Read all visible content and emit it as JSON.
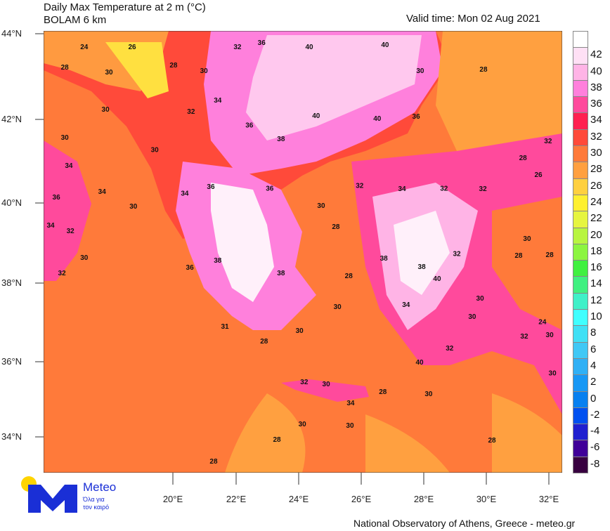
{
  "header": {
    "title": "Daily Max Temperature at 2 m (°C)",
    "model": "BOLAM 6 km",
    "valid_time": "Valid time: Mon 02 Aug 2021"
  },
  "axes": {
    "lat_ticks": [
      "44°N",
      "42°N",
      "40°N",
      "38°N",
      "36°N",
      "34°N"
    ],
    "lon_ticks": [
      "20°E",
      "22°E",
      "24°E",
      "26°E",
      "28°E",
      "30°E",
      "32°E"
    ]
  },
  "colorbar": {
    "labels": [
      "",
      "42",
      "40",
      "38",
      "36",
      "34",
      "32",
      "30",
      "28",
      "26",
      "24",
      "22",
      "20",
      "18",
      "16",
      "14",
      "12",
      "10",
      "8",
      "6",
      "4",
      "2",
      "0",
      "-2",
      "-4",
      "-6",
      "-8"
    ],
    "colors": [
      "#ffffff",
      "#ffe0f5",
      "#ffb4e6",
      "#ff80dc",
      "#ff4a9c",
      "#ff2050",
      "#ff4a3a",
      "#ff7a3a",
      "#ffa040",
      "#ffd040",
      "#fff030",
      "#e6f540",
      "#b8f540",
      "#8cf540",
      "#40f040",
      "#40f080",
      "#40f0c8",
      "#40ffff",
      "#40e0f5",
      "#40c8f5",
      "#30b0f5",
      "#1898f5",
      "#0880f0",
      "#0050f0",
      "#2020d0",
      "#400098",
      "#380040"
    ]
  },
  "temperature_labels": [
    {
      "t": "24",
      "lon": 17.17,
      "lat": 43.69
    },
    {
      "t": "26",
      "lon": 18.7,
      "lat": 43.69
    },
    {
      "t": "28",
      "lon": 16.55,
      "lat": 43.18
    },
    {
      "t": "30",
      "lon": 17.96,
      "lat": 43.06
    },
    {
      "t": "28",
      "lon": 20.02,
      "lat": 43.23
    },
    {
      "t": "30",
      "lon": 20.99,
      "lat": 43.09
    },
    {
      "t": "32",
      "lon": 22.06,
      "lat": 43.69
    },
    {
      "t": "36",
      "lon": 22.83,
      "lat": 43.79
    },
    {
      "t": "40",
      "lon": 24.35,
      "lat": 43.69
    },
    {
      "t": "40",
      "lon": 26.77,
      "lat": 43.74
    },
    {
      "t": "30",
      "lon": 27.89,
      "lat": 43.09
    },
    {
      "t": "28",
      "lon": 29.91,
      "lat": 43.13
    },
    {
      "t": "30",
      "lon": 17.85,
      "lat": 42.14
    },
    {
      "t": "30",
      "lon": 16.55,
      "lat": 41.44
    },
    {
      "t": "32",
      "lon": 20.58,
      "lat": 42.08
    },
    {
      "t": "34",
      "lon": 21.43,
      "lat": 42.36
    },
    {
      "t": "36",
      "lon": 22.44,
      "lat": 41.74
    },
    {
      "t": "40",
      "lon": 24.57,
      "lat": 41.98
    },
    {
      "t": "40",
      "lon": 26.52,
      "lat": 41.91
    },
    {
      "t": "36",
      "lon": 27.76,
      "lat": 41.96
    },
    {
      "t": "38",
      "lon": 23.45,
      "lat": 41.4
    },
    {
      "t": "30",
      "lon": 19.42,
      "lat": 41.13
    },
    {
      "t": "34",
      "lon": 16.68,
      "lat": 40.74
    },
    {
      "t": "36",
      "lon": 16.28,
      "lat": 39.96
    },
    {
      "t": "34",
      "lon": 17.74,
      "lat": 40.1
    },
    {
      "t": "30",
      "lon": 18.74,
      "lat": 39.73
    },
    {
      "t": "34",
      "lon": 20.38,
      "lat": 40.05
    },
    {
      "t": "36",
      "lon": 21.21,
      "lat": 40.22
    },
    {
      "t": "36",
      "lon": 23.09,
      "lat": 40.18
    },
    {
      "t": "30",
      "lon": 24.73,
      "lat": 39.75
    },
    {
      "t": "32",
      "lon": 25.96,
      "lat": 40.25
    },
    {
      "t": "34",
      "lon": 27.31,
      "lat": 40.17
    },
    {
      "t": "32",
      "lon": 28.65,
      "lat": 40.18
    },
    {
      "t": "32",
      "lon": 29.89,
      "lat": 40.17
    },
    {
      "t": "26",
      "lon": 31.66,
      "lat": 40.52
    },
    {
      "t": "32",
      "lon": 31.97,
      "lat": 41.35
    },
    {
      "t": "28",
      "lon": 31.17,
      "lat": 40.93
    },
    {
      "t": "34",
      "lon": 16.1,
      "lat": 39.26
    },
    {
      "t": "32",
      "lon": 16.73,
      "lat": 39.12
    },
    {
      "t": "30",
      "lon": 17.17,
      "lat": 38.46
    },
    {
      "t": "32",
      "lon": 16.46,
      "lat": 38.08
    },
    {
      "t": "36",
      "lon": 20.54,
      "lat": 38.22
    },
    {
      "t": "38",
      "lon": 21.43,
      "lat": 38.39
    },
    {
      "t": "38",
      "lon": 23.45,
      "lat": 38.08
    },
    {
      "t": "28",
      "lon": 25.2,
      "lat": 39.23
    },
    {
      "t": "28",
      "lon": 25.61,
      "lat": 38.01
    },
    {
      "t": "38",
      "lon": 26.73,
      "lat": 38.44
    },
    {
      "t": "38",
      "lon": 27.94,
      "lat": 38.23
    },
    {
      "t": "32",
      "lon": 29.06,
      "lat": 38.56
    },
    {
      "t": "28",
      "lon": 31.03,
      "lat": 38.51
    },
    {
      "t": "28",
      "lon": 32.02,
      "lat": 38.53
    },
    {
      "t": "30",
      "lon": 31.3,
      "lat": 38.93
    },
    {
      "t": "40",
      "lon": 28.43,
      "lat": 37.94
    },
    {
      "t": "34",
      "lon": 27.44,
      "lat": 37.29
    },
    {
      "t": "30",
      "lon": 29.55,
      "lat": 37.0
    },
    {
      "t": "24",
      "lon": 31.79,
      "lat": 36.87
    },
    {
      "t": "30",
      "lon": 32.02,
      "lat": 36.54
    },
    {
      "t": "32",
      "lon": 31.21,
      "lat": 36.51
    },
    {
      "t": "32",
      "lon": 28.83,
      "lat": 36.21
    },
    {
      "t": "40",
      "lon": 27.87,
      "lat": 35.86
    },
    {
      "t": "30",
      "lon": 25.25,
      "lat": 37.24
    },
    {
      "t": "30",
      "lon": 24.04,
      "lat": 36.65
    },
    {
      "t": "28",
      "lon": 22.91,
      "lat": 36.39
    },
    {
      "t": "31",
      "lon": 21.66,
      "lat": 36.75
    },
    {
      "t": "32",
      "lon": 24.19,
      "lat": 35.38
    },
    {
      "t": "30",
      "lon": 24.89,
      "lat": 35.32
    },
    {
      "t": "34",
      "lon": 25.67,
      "lat": 34.85
    },
    {
      "t": "28",
      "lon": 26.7,
      "lat": 35.13
    },
    {
      "t": "30",
      "lon": 28.16,
      "lat": 35.08
    },
    {
      "t": "30",
      "lon": 24.13,
      "lat": 34.33
    },
    {
      "t": "30",
      "lon": 25.65,
      "lat": 34.3
    },
    {
      "t": "28",
      "lon": 23.32,
      "lat": 33.95
    },
    {
      "t": "28",
      "lon": 21.3,
      "lat": 33.41
    },
    {
      "t": "28",
      "lon": 30.18,
      "lat": 33.93
    },
    {
      "t": "30",
      "lon": 32.11,
      "lat": 35.59
    },
    {
      "t": "30",
      "lon": 29.8,
      "lat": 37.45
    }
  ],
  "logo": {
    "name": "Meteo",
    "tagline_1": "Όλα για",
    "tagline_2": "τον καιρό",
    "brand_color": "#1a2fd6",
    "sun_color": "#ffd400"
  },
  "footer": {
    "credit": "National Observatory of Athens, Greece - meteo.gr"
  }
}
